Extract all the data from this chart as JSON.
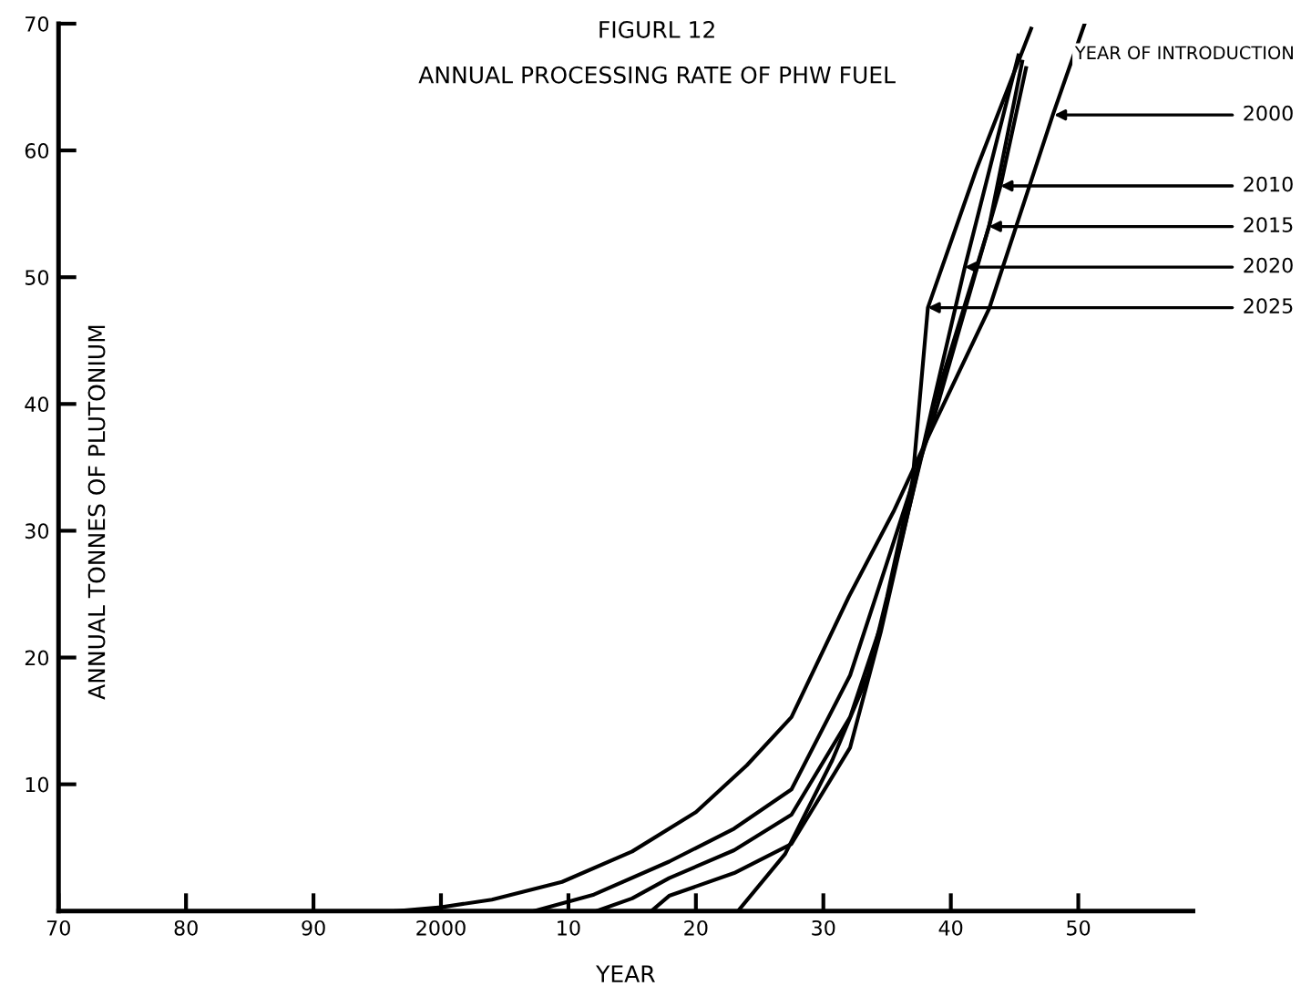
{
  "chart_data": {
    "type": "line",
    "title": "FIGURL 12",
    "subtitle": "ANNUAL PROCESSING RATE OF PHW FUEL",
    "xlabel": "YEAR",
    "ylabel": "ANNUAL TONNES OF PLUTONIUM",
    "xlim": [
      1970,
      2059
    ],
    "ylim": [
      0,
      70
    ],
    "xticks": [
      {
        "value": 1970,
        "label": "70"
      },
      {
        "value": 1980,
        "label": "80"
      },
      {
        "value": 1990,
        "label": "90"
      },
      2000,
      {
        "value": 2010,
        "label": "10"
      },
      {
        "value": 2020,
        "label": "20"
      },
      {
        "value": 2030,
        "label": "30"
      },
      {
        "value": 2040,
        "label": "40"
      },
      {
        "value": 2050,
        "label": "50"
      }
    ],
    "yticks": [
      10,
      20,
      30,
      40,
      50,
      60,
      70
    ],
    "grid": false,
    "legend": false,
    "marker": "none",
    "line_style": "solid",
    "series": [
      {
        "color": "#000000",
        "x": [
          1996.5,
          2000,
          2004,
          2009.5,
          2015,
          2020,
          2024,
          2027.5,
          2032,
          2035.5,
          2038.5,
          2043,
          2048,
          2050.5
        ],
        "values": [
          0,
          0.3,
          0.9,
          2.3,
          4.7,
          7.8,
          11.5,
          15.3,
          24.8,
          31.5,
          38,
          47.5,
          62.8,
          70
        ]
      },
      {
        "color": "#000000",
        "x": [
          2007.3,
          2012,
          2017.9,
          2023,
          2027.5,
          2032.1,
          2034.9,
          2038.7,
          2043.9,
          2045.9
        ],
        "values": [
          0,
          1.3,
          3.9,
          6.5,
          9.6,
          18.6,
          27.2,
          39,
          57.2,
          66.5
        ]
      },
      {
        "color": "#000000",
        "x": [
          2012.2,
          2015,
          2017.9,
          2023,
          2027.5,
          2032.1,
          2034.5,
          2038.7,
          2043,
          2045.6
        ],
        "values": [
          0,
          1,
          2.6,
          4.8,
          7.6,
          15.3,
          22.5,
          40,
          54,
          67
        ]
      },
      {
        "color": "#000000",
        "x": [
          2016.5,
          2017.9,
          2023,
          2027.5,
          2032.1,
          2034.5,
          2038.6,
          2041.1,
          2045.3
        ],
        "values": [
          0,
          1.2,
          3,
          5.3,
          12.9,
          22,
          40,
          50.8,
          67.5
        ]
      },
      {
        "color": "#000000",
        "x": [
          2023.3,
          2027,
          2030.7,
          2033.5,
          2035,
          2037,
          2038.2,
          2042,
          2046.3
        ],
        "values": [
          0,
          4.5,
          11.9,
          18.6,
          24.8,
          34,
          47.6,
          58.5,
          69.6
        ]
      }
    ],
    "annotations": [
      "YEAR OF INTRODUCTION",
      {
        "text": "2000",
        "x": 2048.1,
        "y": 62.8
      },
      {
        "text": "2010",
        "x": 2043.9,
        "y": 57.2
      },
      {
        "text": "2015",
        "x": 2043,
        "y": 54
      },
      {
        "text": "2020",
        "x": 2041.1,
        "y": 50.8
      },
      {
        "text": "2025",
        "x": 2038.2,
        "y": 47.6
      }
    ]
  }
}
